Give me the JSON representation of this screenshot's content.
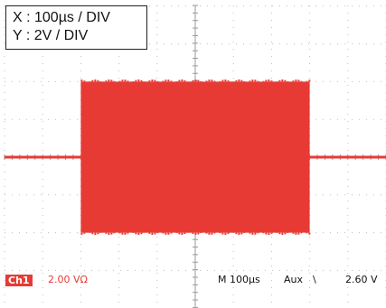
{
  "scale_box": {
    "x_label": "X : 100µs / DIV",
    "y_label": "Y : 2V / DIV"
  },
  "status_bar": {
    "channel_badge": "Ch1",
    "channel_volts": "2.00 VΩ",
    "timebase": "M  100µs",
    "trigger_source": "Aux",
    "trigger_slope": "\\",
    "trigger_level": "2.60 V"
  },
  "waveform": {
    "color": "#e83a34",
    "burst_start_div": 2,
    "burst_end_div": 8,
    "burst_amplitude_div": 2.0,
    "baseline_div": 0
  },
  "graticule": {
    "divisions_x": 10,
    "divisions_y": 8,
    "grid_color": "#bfbfbf"
  }
}
